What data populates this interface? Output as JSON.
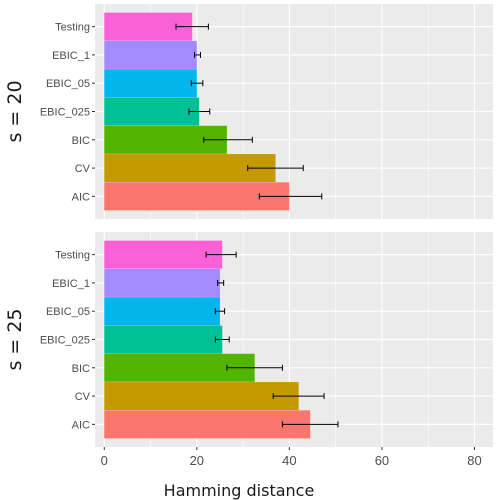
{
  "chart_data": {
    "type": "bar",
    "orientation": "horizontal",
    "xlabel": "Hamming distance",
    "xlim": [
      -2,
      84
    ],
    "xticks": [
      0,
      20,
      40,
      60,
      80
    ],
    "categories": [
      "Testing",
      "EBIC_1",
      "EBIC_05",
      "EBIC_025",
      "BIC",
      "CV",
      "AIC"
    ],
    "colors": {
      "AIC": "#F8766D",
      "CV": "#C49A00",
      "BIC": "#53B400",
      "EBIC_025": "#00C094",
      "EBIC_05": "#00B6EB",
      "EBIC_1": "#A58AFF",
      "Testing": "#FB61D7"
    },
    "panel_background": "#EBEBEB",
    "grid": true,
    "facets": [
      {
        "label": "s = 20",
        "bars": [
          {
            "category": "Testing",
            "value": 19,
            "err_low": 15.5,
            "err_high": 22.5
          },
          {
            "category": "EBIC_1",
            "value": 20,
            "err_low": 19.5,
            "err_high": 20.8
          },
          {
            "category": "EBIC_05",
            "value": 20,
            "err_low": 18.8,
            "err_high": 21.3
          },
          {
            "category": "EBIC_025",
            "value": 20.5,
            "err_low": 18.3,
            "err_high": 22.8
          },
          {
            "category": "BIC",
            "value": 26.5,
            "err_low": 21.5,
            "err_high": 32
          },
          {
            "category": "CV",
            "value": 37,
            "err_low": 31,
            "err_high": 43
          },
          {
            "category": "AIC",
            "value": 40,
            "err_low": 33.5,
            "err_high": 47
          }
        ]
      },
      {
        "label": "s = 25",
        "bars": [
          {
            "category": "Testing",
            "value": 25.5,
            "err_low": 22,
            "err_high": 28.5
          },
          {
            "category": "EBIC_1",
            "value": 25,
            "err_low": 24.5,
            "err_high": 25.8
          },
          {
            "category": "EBIC_05",
            "value": 25,
            "err_low": 24,
            "err_high": 26
          },
          {
            "category": "EBIC_025",
            "value": 25.5,
            "err_low": 24,
            "err_high": 27
          },
          {
            "category": "BIC",
            "value": 32.5,
            "err_low": 26.5,
            "err_high": 38.5
          },
          {
            "category": "CV",
            "value": 42,
            "err_low": 36.5,
            "err_high": 47.5
          },
          {
            "category": "AIC",
            "value": 44.5,
            "err_low": 38.5,
            "err_high": 50.5
          }
        ]
      }
    ]
  }
}
